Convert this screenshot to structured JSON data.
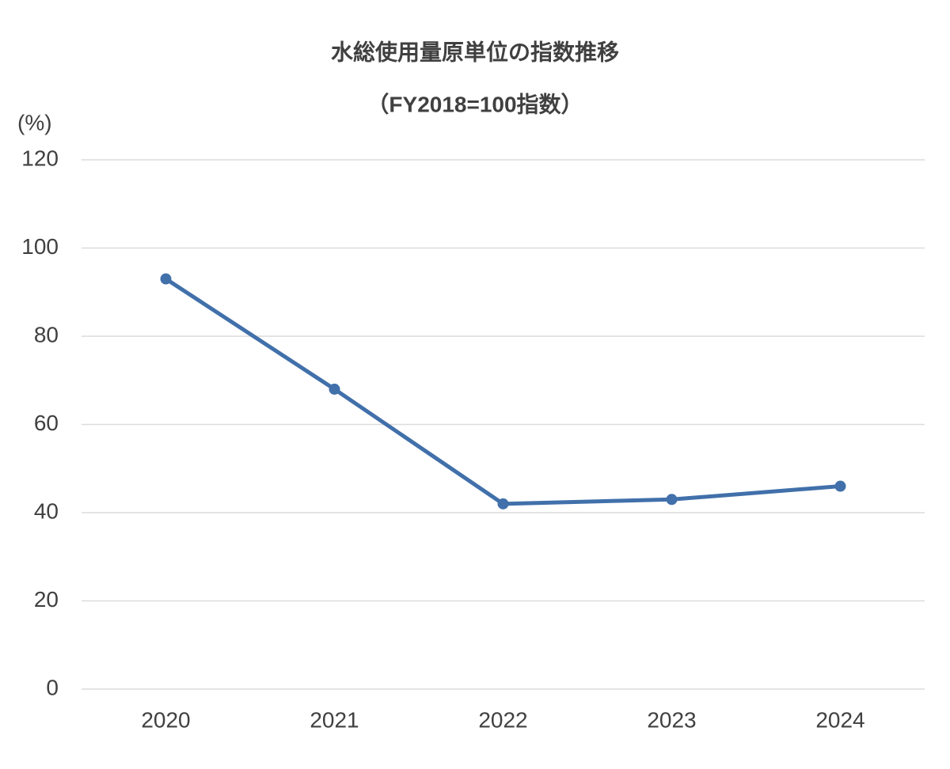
{
  "chart_data": {
    "type": "line",
    "title": "水総使用量原単位の指数推移",
    "subtitle": "（FY2018=100指数）",
    "y_label": "(%)",
    "categories": [
      "2020",
      "2021",
      "2022",
      "2023",
      "2024"
    ],
    "series": [
      {
        "name": "水総使用量原単位",
        "color": "#4170aa",
        "values": [
          93,
          68,
          42,
          43,
          46
        ]
      }
    ],
    "ylim": [
      0,
      120
    ],
    "yticks": [
      0,
      20,
      40,
      60,
      80,
      100,
      120
    ],
    "grid": true
  }
}
